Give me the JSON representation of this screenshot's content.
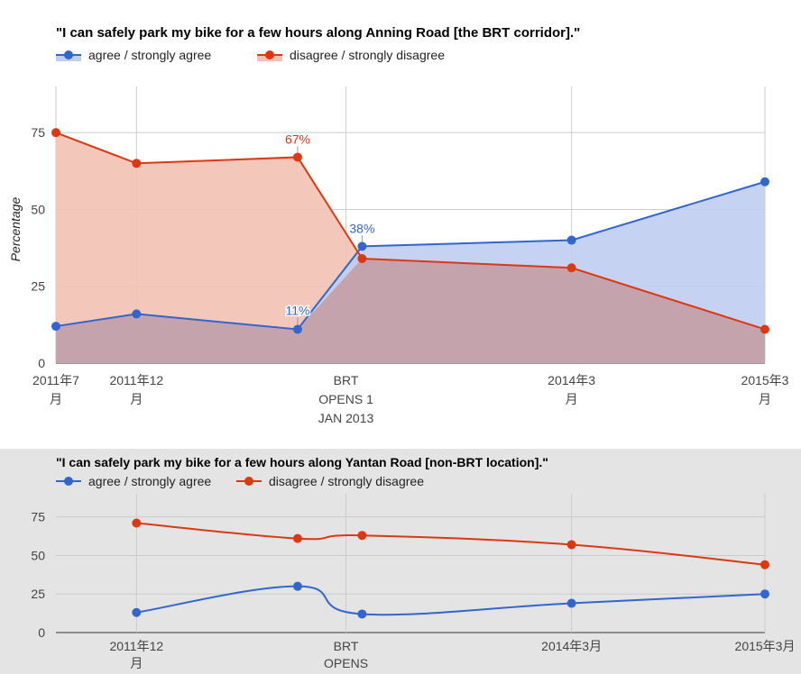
{
  "chart_data": [
    {
      "type": "area",
      "title": "\"I can safely park my bike for a few hours along Anning Road [the BRT corridor].\"",
      "ylabel": "Percentage",
      "ylim": [
        0,
        90
      ],
      "yticks": [
        0,
        25,
        50,
        75
      ],
      "grid": true,
      "legend_position": "top",
      "x_ticks": [
        {
          "label": [
            "2011年7",
            "月"
          ],
          "x": "2011-07"
        },
        {
          "label": [
            "2011年12",
            "月"
          ],
          "x": "2011-12"
        },
        {
          "label": [
            "BRT",
            "OPENS 1",
            "JAN 2013"
          ],
          "x": "2013-01"
        },
        {
          "label": [
            "2014年3",
            "月"
          ],
          "x": "2014-03"
        },
        {
          "label": [
            "2015年3",
            "月"
          ],
          "x": "2015-03"
        }
      ],
      "x": [
        "2011-07",
        "2011-12",
        "2012-10",
        "2013-02",
        "2014-03",
        "2015-03"
      ],
      "series": [
        {
          "name": "agree / strongly agree",
          "color": "#3366cc",
          "fill": "#bfcdf0",
          "values": [
            12,
            16,
            11,
            38,
            40,
            59
          ],
          "annotations": [
            {
              "index": 2,
              "text": "11%"
            },
            {
              "index": 3,
              "text": "38%"
            }
          ]
        },
        {
          "name": "disagree / strongly disagree",
          "color": "#dc3912",
          "fill": "#f3c1b4",
          "values": [
            75,
            65,
            67,
            34,
            31,
            11
          ],
          "annotations": [
            {
              "index": 2,
              "text": "67%"
            }
          ]
        }
      ]
    },
    {
      "type": "line",
      "title": "\"I can safely park my bike for a few hours along Yantan Road [non-BRT location].\"",
      "ylim": [
        0,
        90
      ],
      "yticks": [
        0,
        25,
        50,
        75
      ],
      "grid": true,
      "legend_position": "top",
      "x_ticks": [
        {
          "label": [
            "2011年12",
            "月"
          ],
          "x": "2011-12"
        },
        {
          "label": [
            "BRT",
            "OPENS"
          ],
          "x": "2013-01"
        },
        {
          "label": [
            "2014年3月"
          ],
          "x": "2014-03"
        },
        {
          "label": [
            "2015年3月"
          ],
          "x": "2015-03"
        }
      ],
      "x": [
        "2011-12",
        "2012-10",
        "2013-02",
        "2014-03",
        "2015-03"
      ],
      "series": [
        {
          "name": "agree / strongly agree",
          "color": "#3366cc",
          "values": [
            13,
            30,
            12,
            19,
            25
          ]
        },
        {
          "name": "disagree / strongly disagree",
          "color": "#dc3912",
          "values": [
            71,
            61,
            63,
            57,
            44
          ]
        }
      ]
    }
  ]
}
